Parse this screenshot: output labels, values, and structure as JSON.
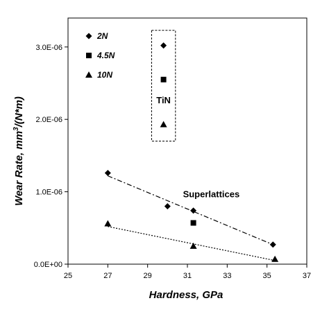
{
  "chart_data": {
    "type": "scatter",
    "xlabel": "Hardness, GPa",
    "ylabel_main": "Wear Rate, mm",
    "ylabel_sup": "3",
    "ylabel_tail": "/(N*m)",
    "xlim": [
      25,
      37
    ],
    "ylim": [
      0,
      3.4e-06
    ],
    "x_ticks": [
      25,
      27,
      29,
      31,
      33,
      35,
      37
    ],
    "x_tick_labels": [
      "25",
      "27",
      "29",
      "31",
      "33",
      "35",
      "37"
    ],
    "y_ticks": [
      0,
      1e-06,
      2e-06,
      3e-06
    ],
    "y_tick_labels": [
      "0.0E+00",
      "1.0E-06",
      "2.0E-06",
      "3.0E-06"
    ],
    "grid": false,
    "legend_position": "top-left",
    "series": [
      {
        "name": "2N",
        "marker": "diamond",
        "points": [
          {
            "x": 27.0,
            "y": 1.26e-06
          },
          {
            "x": 30.0,
            "y": 8e-07
          },
          {
            "x": 31.3,
            "y": 7.4e-07
          },
          {
            "x": 35.3,
            "y": 2.7e-07
          },
          {
            "x": 29.8,
            "y": 3.02e-06
          }
        ],
        "trend": {
          "x1": 27.0,
          "y1": 1.22e-06,
          "x2": 35.3,
          "y2": 2.7e-07,
          "style": "dash-dot"
        }
      },
      {
        "name": "4.5N",
        "marker": "square",
        "points": [
          {
            "x": 31.3,
            "y": 5.7e-07
          },
          {
            "x": 29.8,
            "y": 2.55e-06
          }
        ]
      },
      {
        "name": "10N",
        "marker": "triangle",
        "points": [
          {
            "x": 27.0,
            "y": 5.6e-07
          },
          {
            "x": 31.3,
            "y": 2.5e-07
          },
          {
            "x": 35.4,
            "y": 7e-08
          },
          {
            "x": 29.8,
            "y": 1.93e-06
          }
        ],
        "trend": {
          "x1": 27.0,
          "y1": 5.2e-07,
          "x2": 35.4,
          "y2": 5e-08,
          "style": "dotted"
        }
      }
    ],
    "annotations": [
      {
        "text": "TiN",
        "x": 29.8,
        "y": 2.27e-06
      },
      {
        "text": "Superlattices",
        "x": 32.2,
        "y": 9.7e-07
      }
    ],
    "tin_box": {
      "x_min": 29.2,
      "x_max": 30.4,
      "y_min": 1.7e-06,
      "y_max": 3.23e-06
    }
  }
}
